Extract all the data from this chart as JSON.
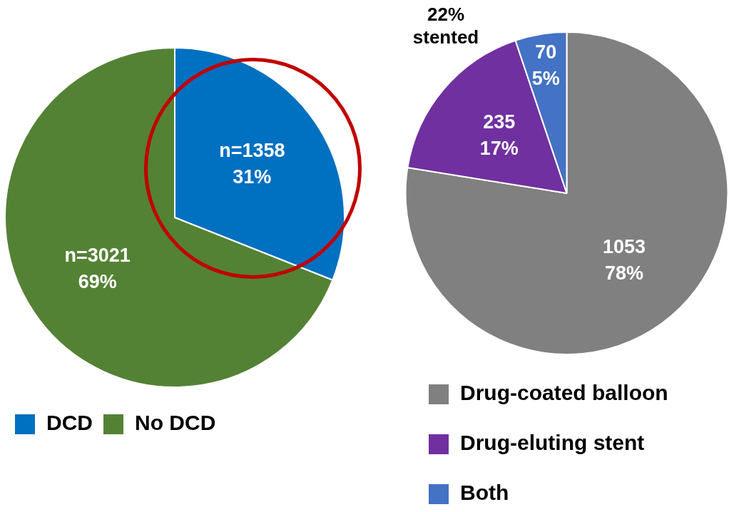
{
  "chart_data": [
    {
      "type": "pie",
      "categories": [
        "DCD",
        "No DCD"
      ],
      "values": [
        1358,
        3021
      ],
      "colors": [
        "#0070c0",
        "#548235"
      ],
      "value_labels": [
        "n=1358\n31%",
        "n=3021\n69%"
      ],
      "legend": "bottom"
    },
    {
      "type": "pie",
      "categories": [
        "Drug-coated balloon",
        "Drug-eluting stent",
        "Both"
      ],
      "values": [
        1053,
        235,
        70
      ],
      "colors": [
        "#808080",
        "#7030a0",
        "#4472c4"
      ],
      "value_labels": [
        "1053\n78%",
        "235\n17%",
        "70\n5%"
      ],
      "annotations": [
        "22% stented"
      ],
      "legend": "bottom"
    }
  ]
}
